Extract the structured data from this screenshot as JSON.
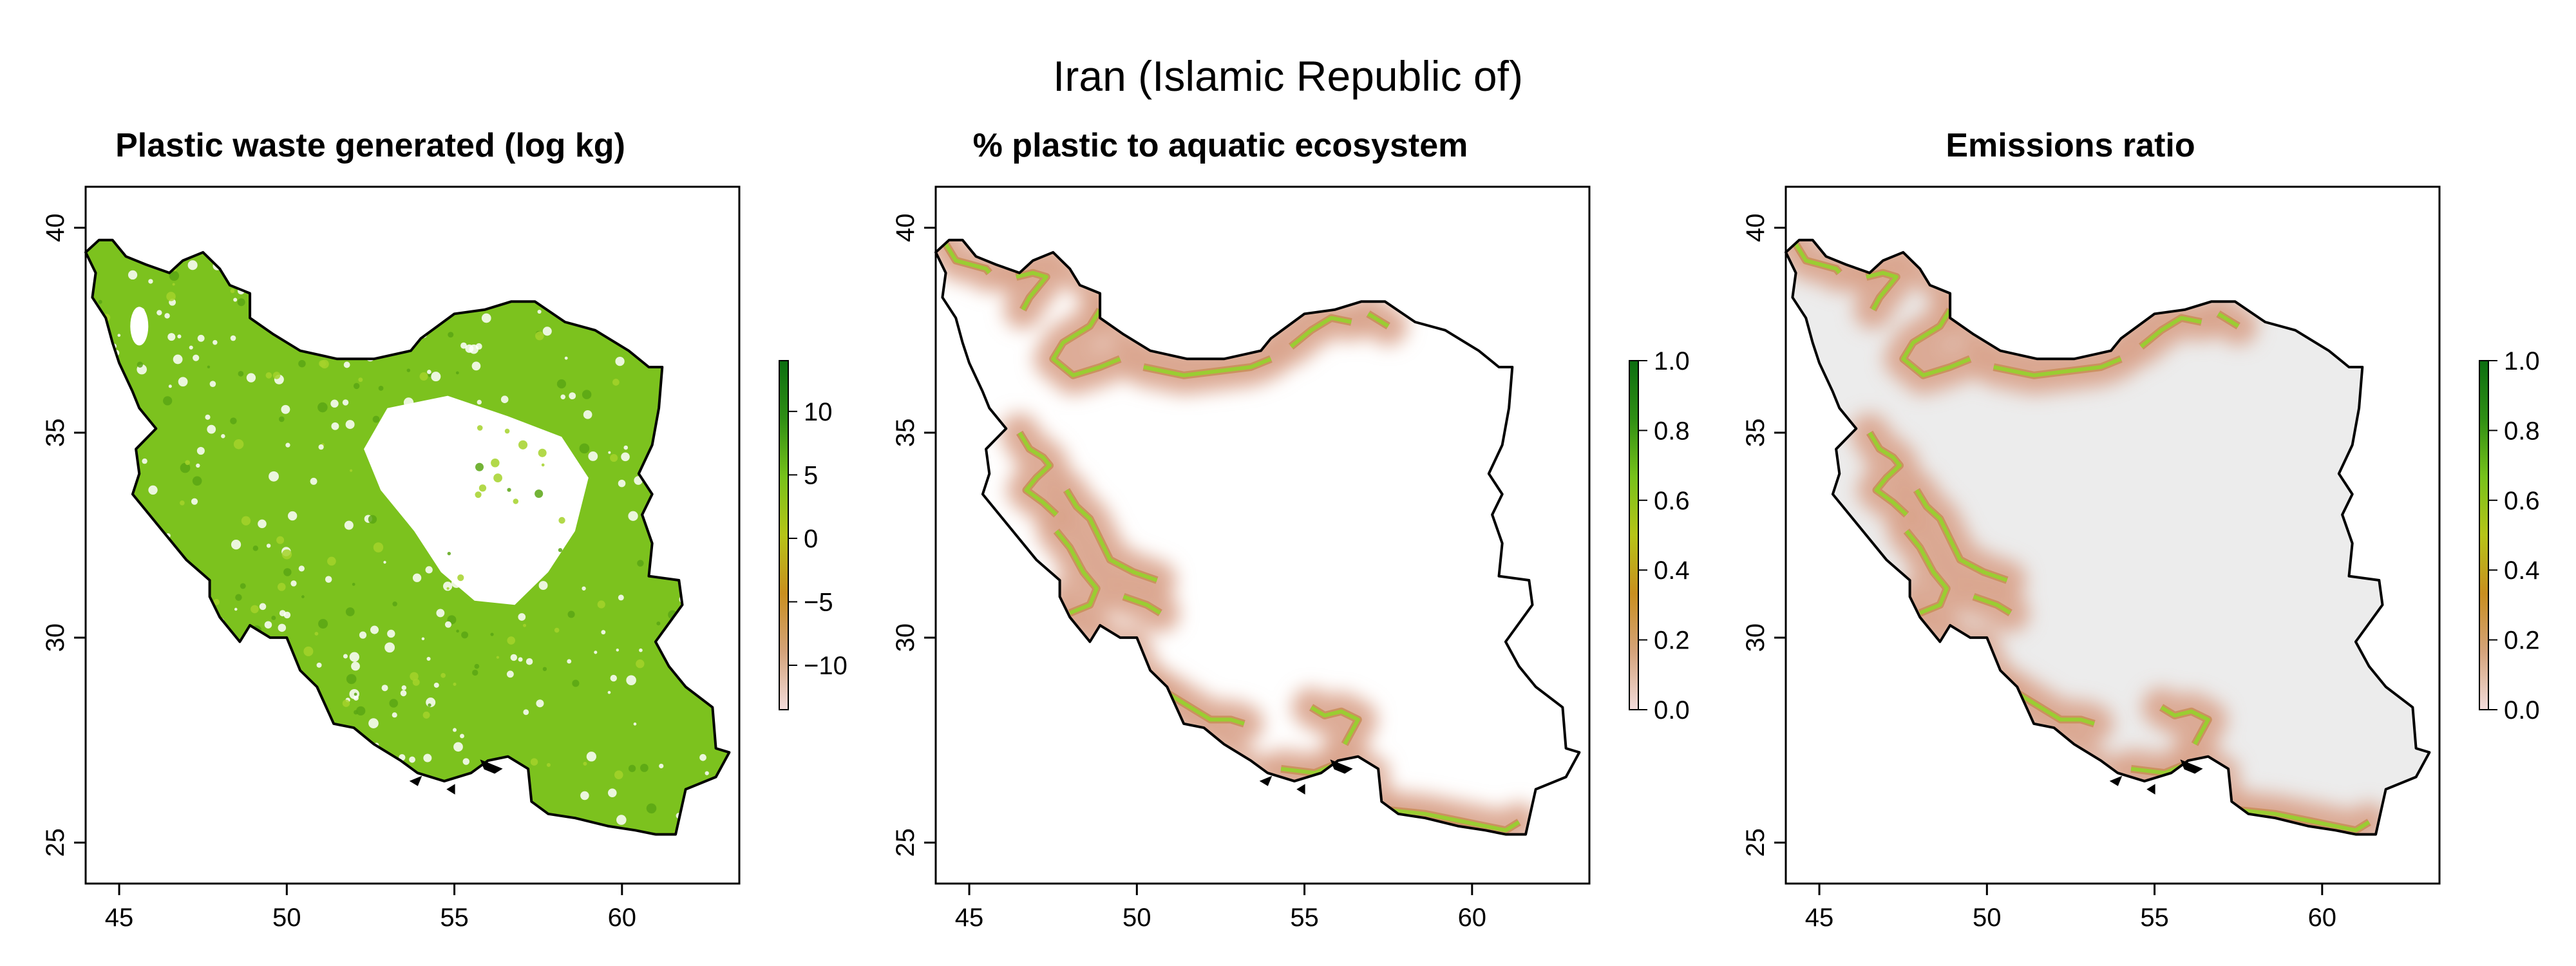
{
  "title": "Iran (Islamic Republic of)",
  "panels": [
    {
      "id": "waste",
      "title": "Plastic waste generated (log kg)",
      "style": "waste",
      "colorbar": {
        "ticks": [
          10,
          5,
          0,
          -5,
          -10
        ],
        "range": [
          -13.5,
          14
        ],
        "colors": [
          "#f3dcdc",
          "#d4a37a",
          "#c98f1f",
          "#b6c418",
          "#77c21a",
          "#2f8f14",
          "#0b6e10"
        ]
      }
    },
    {
      "id": "aquatic",
      "title": "% plastic to aquatic ecosystem",
      "style": "aquatic",
      "colorbar": {
        "ticks": [
          1.0,
          0.8,
          0.6,
          0.4,
          0.2,
          0.0
        ],
        "tick_labels": [
          "1.0",
          "0.8",
          "0.6",
          "0.4",
          "0.2",
          "0.0"
        ],
        "range": [
          0,
          1
        ],
        "colors": [
          "#f3dcdc",
          "#d4a37a",
          "#c98f1f",
          "#b6c418",
          "#77c21a",
          "#2f8f14",
          "#0b6e10"
        ]
      }
    },
    {
      "id": "emissions",
      "title": "Emissions ratio",
      "style": "emissions",
      "colorbar": {
        "ticks": [
          1.0,
          0.8,
          0.6,
          0.4,
          0.2,
          0.0
        ],
        "tick_labels": [
          "1.0",
          "0.8",
          "0.6",
          "0.4",
          "0.2",
          "0.0"
        ],
        "range": [
          0,
          1
        ],
        "colors": [
          "#f3dcdc",
          "#d4a37a",
          "#c98f1f",
          "#b6c418",
          "#77c21a",
          "#2f8f14",
          "#0b6e10"
        ]
      }
    }
  ],
  "axes": {
    "x_ticks": [
      45,
      50,
      55,
      60
    ],
    "y_ticks": [
      25,
      30,
      35,
      40
    ],
    "xlim": [
      44,
      63.5
    ],
    "ylim": [
      24,
      41
    ]
  },
  "colors": {
    "land_gray": "#ececec",
    "green_fill": "#7cc21e",
    "halo": "#d9a38c",
    "river": "#9acd32"
  }
}
